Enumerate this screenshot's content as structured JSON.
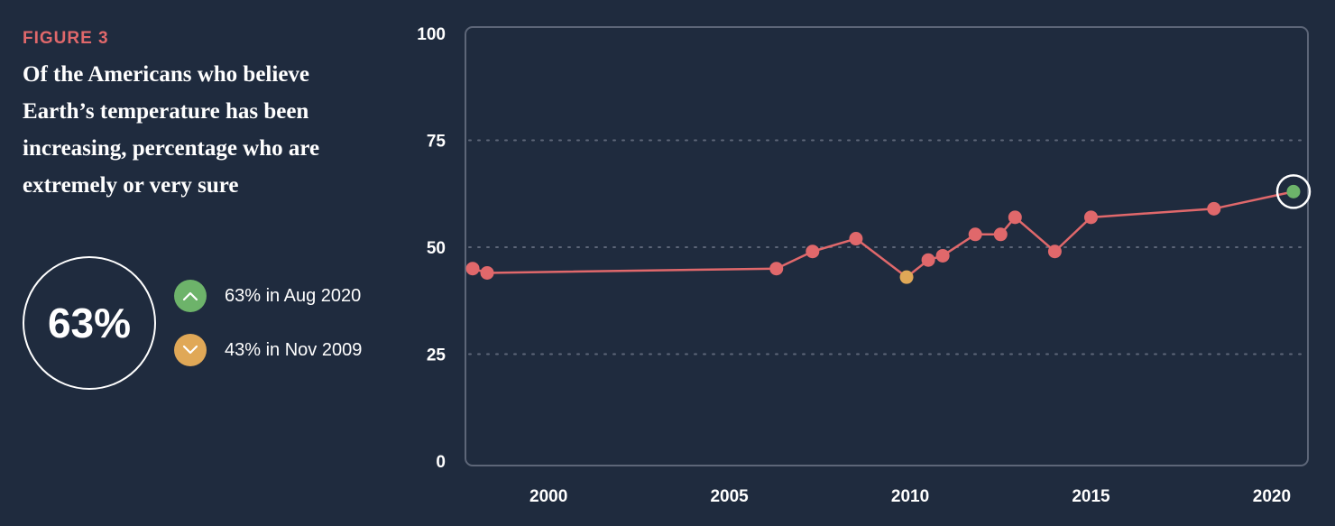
{
  "figure": {
    "label": "FIGURE 3",
    "title": "Of the Americans who believe Earth’s temperature has been increasing, percentage who are extremely or very sure"
  },
  "summary": {
    "headline_value": "63%",
    "high": {
      "text": "63% in Aug 2020",
      "color": "#6db36a",
      "icon": "chevron-up-icon"
    },
    "low": {
      "text": "43% in Nov 2009",
      "color": "#e0a857",
      "icon": "chevron-down-icon"
    }
  },
  "chart_data": {
    "type": "line",
    "title": "",
    "xlabel": "",
    "ylabel": "",
    "xlim": [
      1997.7,
      2021.0
    ],
    "ylim": [
      0,
      100
    ],
    "yticks": [
      0,
      25,
      50,
      75,
      100
    ],
    "xticks": [
      2000,
      2005,
      2010,
      2015,
      2020
    ],
    "grid": "horizontal dotted",
    "line_color": "#e0686b",
    "series": [
      {
        "x": [
          1997.9,
          1998.3,
          2006.3,
          2007.3,
          2008.5,
          2009.9,
          2010.5,
          2010.9,
          2011.8,
          2012.5,
          2012.9,
          2014.0,
          2015.0,
          2018.4,
          2020.6
        ],
        "values": [
          45,
          44,
          45,
          49,
          52,
          43,
          47,
          48,
          53,
          53,
          57,
          49,
          57,
          59,
          63
        ]
      }
    ],
    "highlights": {
      "max": {
        "x": 2020.6,
        "value": 63,
        "color": "#6db36a"
      },
      "min": {
        "x": 2009.9,
        "value": 43,
        "color": "#e0a857"
      }
    }
  }
}
